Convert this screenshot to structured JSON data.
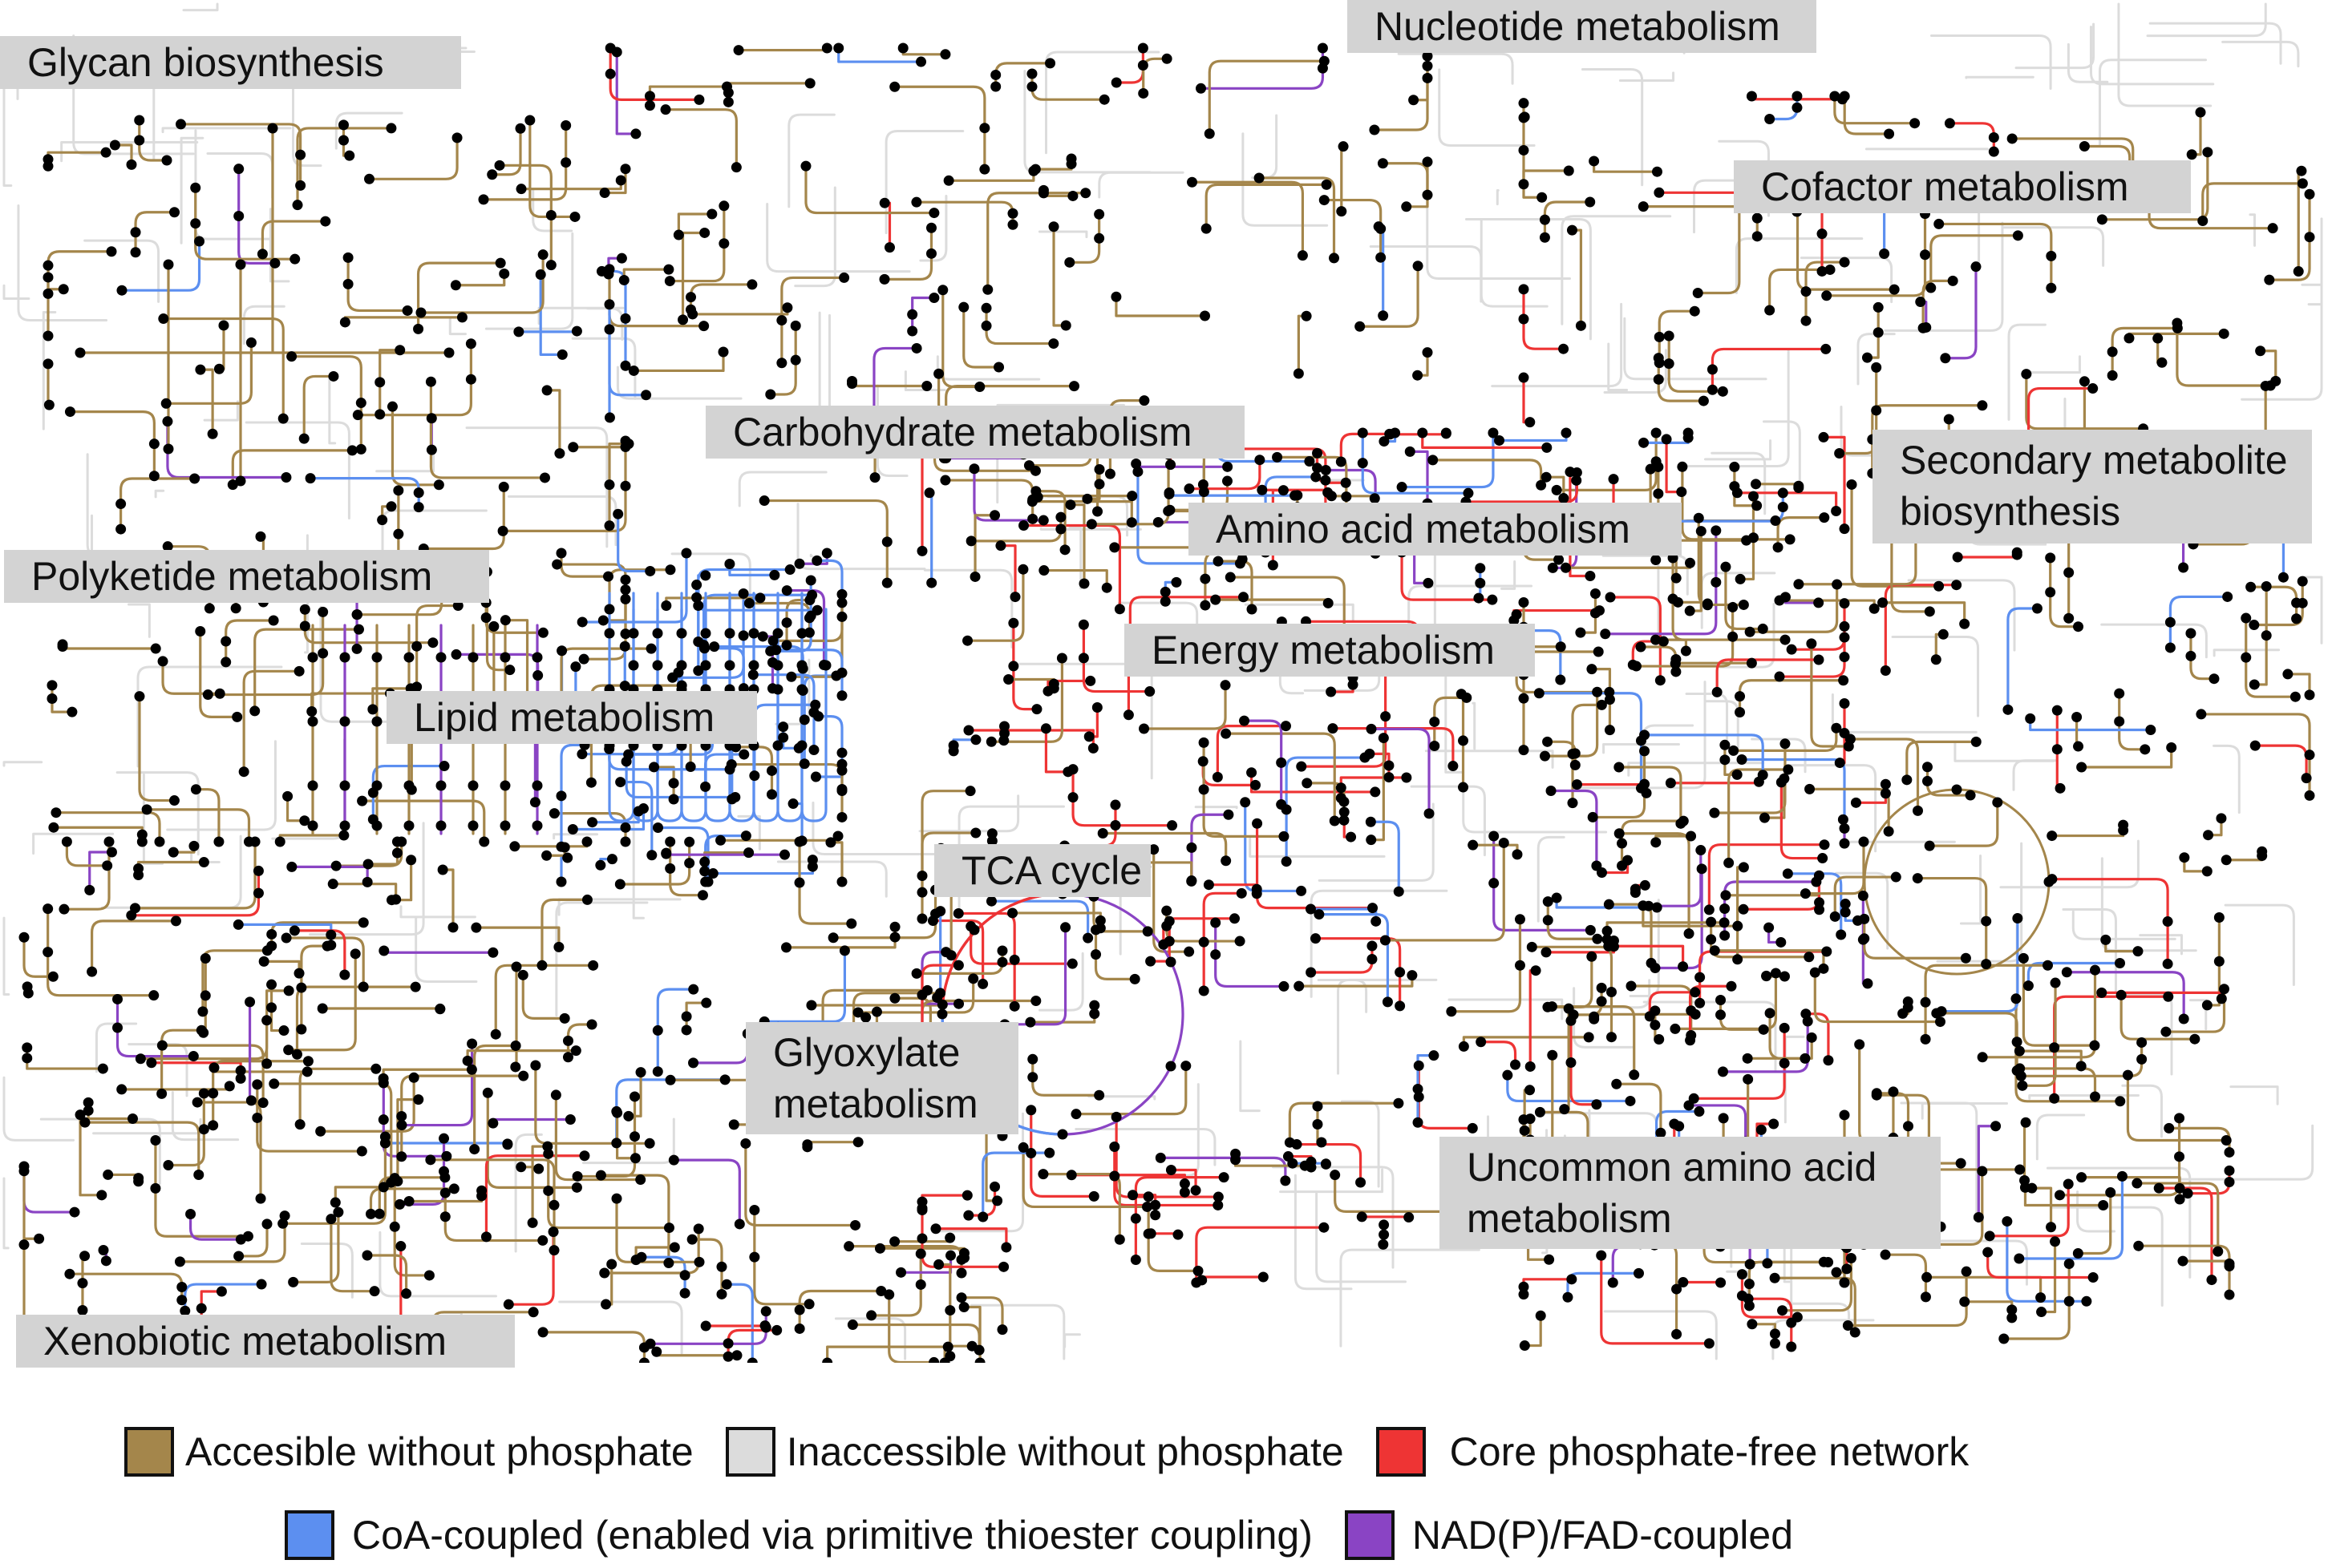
{
  "title": "",
  "colors": {
    "accessible": "#a4864b",
    "inaccessible": "#dcdcdc",
    "core": "#ee3434",
    "coa": "#5c8ff0",
    "nadp": "#8a44c4",
    "node": "#000000",
    "label_bg": "#d3d3d3"
  },
  "regions": [
    "Glycan biosynthesis",
    "Nucleotide metabolism",
    "Cofactor metabolism",
    "Carbohydrate metabolism",
    "Secondary metabolite",
    "biosynthesis",
    "Amino acid metabolism",
    "Polyketide metabolism",
    "Energy metabolism",
    "Lipid metabolism",
    "TCA cycle",
    "Glyoxylate",
    "metabolism",
    "Uncommon amino acid",
    "metabolism",
    "Xenobiotic metabolism"
  ],
  "legend": [
    {
      "label": "Accesible without phosphate",
      "color": "#a4864b"
    },
    {
      "label": "Inaccessible without phosphate",
      "color": "#dcdcdc"
    },
    {
      "label": "Core phosphate-free network",
      "color": "#ee3434"
    },
    {
      "label": "CoA-coupled (enabled via primitive thioester coupling)",
      "color": "#5c8ff0"
    },
    {
      "label": "NAD(P)/FAD-coupled",
      "color": "#8a44c4"
    }
  ]
}
